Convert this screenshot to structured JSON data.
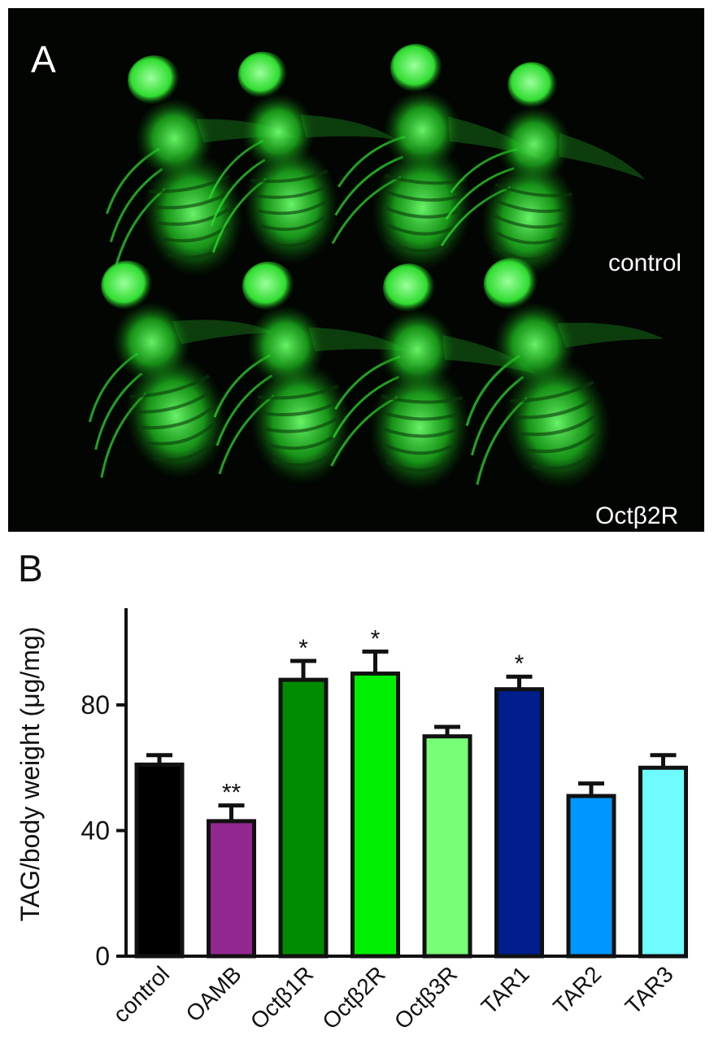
{
  "panel_a": {
    "letter": "A",
    "row_labels": {
      "top": "control",
      "bottom": "Octβ2R"
    },
    "fluorescence_color": "#2ee62e"
  },
  "panel_b": {
    "letter": "B"
  },
  "chart_data": {
    "type": "bar",
    "title": "",
    "xlabel": "",
    "ylabel": "TAG/body weight (μg/mg)",
    "ylim": [
      0,
      110
    ],
    "yticks": [
      0,
      40,
      80
    ],
    "categories": [
      "control",
      "OAMB",
      "Octβ1R",
      "Octβ2R",
      "Octβ3R",
      "TAR1",
      "TAR2",
      "TAR3"
    ],
    "values": [
      61,
      43,
      88,
      90,
      70,
      85,
      51,
      60
    ],
    "errors": [
      3,
      5,
      6,
      7,
      3,
      4,
      4,
      4
    ],
    "significance": [
      "",
      "**",
      "*",
      "*",
      "",
      "*",
      "",
      ""
    ],
    "colors": [
      "#000000",
      "#92278f",
      "#008c00",
      "#00ee00",
      "#77ff77",
      "#001e8c",
      "#0096ff",
      "#6ffcff"
    ],
    "grid": false,
    "legend": "none"
  }
}
